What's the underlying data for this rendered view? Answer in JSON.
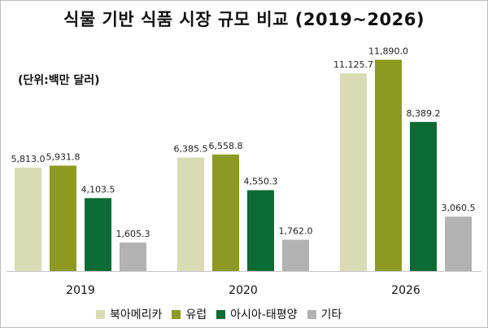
{
  "title": "식물 기반 식품 시장 규모 비교 (2019~2026)",
  "unit_label": "(단위:백만 달러)",
  "chart_data": {
    "type": "bar",
    "title": "식물 기반 식품 시장 규모 비교 (2019~2026)",
    "ylabel": "(단위:백만 달러)",
    "xlabel": "",
    "categories": [
      "2019",
      "2020",
      "2026"
    ],
    "ylim": [
      0,
      12000
    ],
    "series": [
      {
        "name": "북아메리카",
        "color": "#d9dbb4",
        "values": [
          5813.0,
          6385.5,
          11125.7
        ],
        "labels": [
          "5,813.0",
          "6,385.5",
          "11,125.7"
        ]
      },
      {
        "name": "유럽",
        "color": "#8c9a22",
        "values": [
          5931.8,
          6558.8,
          11890.0
        ],
        "labels": [
          "5,931.8",
          "6,558.8",
          "11,890.0"
        ]
      },
      {
        "name": "아시아-태평양",
        "color": "#0b6b35",
        "values": [
          4103.5,
          4550.3,
          8389.2
        ],
        "labels": [
          "4,103.5",
          "4,550.3",
          "8,389.2"
        ]
      },
      {
        "name": "기타",
        "color": "#b3b3b3",
        "values": [
          1605.3,
          1762.0,
          3060.5
        ],
        "labels": [
          "1,605.3",
          "1,762.0",
          "3,060.5"
        ]
      }
    ]
  }
}
